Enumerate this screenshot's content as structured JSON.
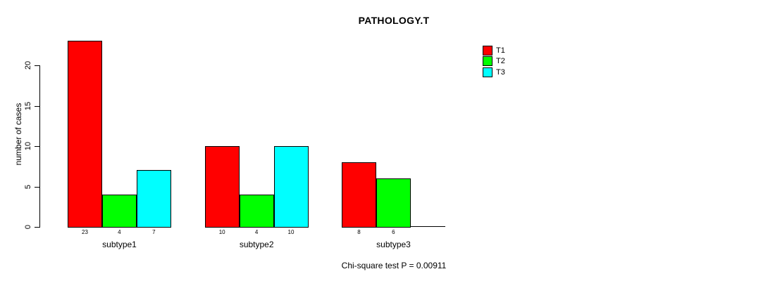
{
  "title": "PATHOLOGY.T",
  "ylabel": "number of cases",
  "annotation": "Chi-square test P = 0.00911",
  "colors": {
    "t1": "#FF0000",
    "t2": "#00FF00",
    "t3": "#00FFFF",
    "axis": "#000000",
    "background": "#FFFFFF"
  },
  "legend": {
    "position": "inside-top-right",
    "items": [
      {
        "label": "T1",
        "color": "#FF0000"
      },
      {
        "label": "T2",
        "color": "#00FF00"
      },
      {
        "label": "T3",
        "color": "#00FFFF"
      }
    ]
  },
  "chart_data": {
    "type": "bar",
    "grouped": true,
    "title": "PATHOLOGY.T",
    "xlabel": "",
    "ylabel": "number of cases",
    "categories": [
      "subtype1",
      "subtype2",
      "subtype3"
    ],
    "series": [
      {
        "name": "T1",
        "color": "#FF0000",
        "values": [
          23,
          10,
          8
        ]
      },
      {
        "name": "T2",
        "color": "#00FF00",
        "values": [
          4,
          4,
          6
        ]
      },
      {
        "name": "T3",
        "color": "#00FFFF",
        "values": [
          7,
          10,
          0
        ]
      }
    ],
    "bar_value_labels": [
      [
        "23",
        "4",
        "7"
      ],
      [
        "10",
        "4",
        "10"
      ],
      [
        "8",
        "6",
        ""
      ]
    ],
    "ylim": [
      0,
      23
    ],
    "yticks": [
      0,
      5,
      10,
      15,
      20
    ],
    "grid": false,
    "legend_entries": [
      "T1",
      "T2",
      "T3"
    ],
    "annotation": "Chi-square test P = 0.00911"
  }
}
